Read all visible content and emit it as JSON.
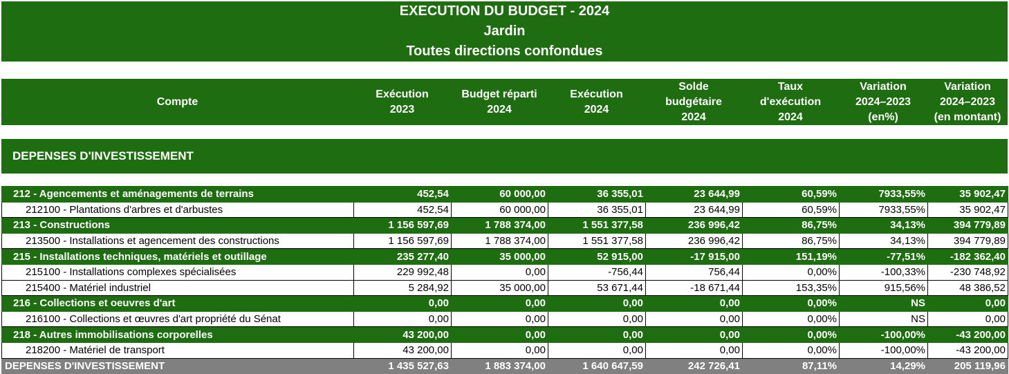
{
  "title": {
    "line1": "EXECUTION DU BUDGET - 2024",
    "line2": "Jardin",
    "line3": "Toutes directions confondues"
  },
  "headers": [
    {
      "l1": "Compte",
      "l2": "",
      "l3": ""
    },
    {
      "l1": "Exécution",
      "l2": "2023",
      "l3": ""
    },
    {
      "l1": "Budget réparti",
      "l2": "2024",
      "l3": ""
    },
    {
      "l1": "Exécution",
      "l2": "2024",
      "l3": ""
    },
    {
      "l1": "Solde",
      "l2": "budgétaire",
      "l3": "2024"
    },
    {
      "l1": "Taux",
      "l2": "d'exécution",
      "l3": "2024"
    },
    {
      "l1": "Variation",
      "l2": "2024–2023",
      "l3": "(en%)"
    },
    {
      "l1": "Variation",
      "l2": "2024–2023",
      "l3": "(en montant)"
    }
  ],
  "section_title": "DEPENSES D'INVESTISSEMENT",
  "rows": [
    {
      "type": "group",
      "cells": [
        "212 - Agencements et aménagements de terrains",
        "452,54",
        "60 000,00",
        "36 355,01",
        "23 644,99",
        "60,59%",
        "7933,55%",
        "35 902,47"
      ]
    },
    {
      "type": "detail",
      "cells": [
        "212100 - Plantations d'arbres et d'arbustes",
        "452,54",
        "60 000,00",
        "36 355,01",
        "23 644,99",
        "60,59%",
        "7933,55%",
        "35 902,47"
      ]
    },
    {
      "type": "group",
      "cells": [
        "213 - Constructions",
        "1 156 597,69",
        "1 788 374,00",
        "1 551 377,58",
        "236 996,42",
        "86,75%",
        "34,13%",
        "394 779,89"
      ]
    },
    {
      "type": "detail",
      "cells": [
        "213500 - Installations et agencement des constructions",
        "1 156 597,69",
        "1 788 374,00",
        "1 551 377,58",
        "236 996,42",
        "86,75%",
        "34,13%",
        "394 779,89"
      ]
    },
    {
      "type": "group",
      "cells": [
        "215 - Installations techniques, matériels et outillage",
        "235 277,40",
        "35 000,00",
        "52 915,00",
        "-17 915,00",
        "151,19%",
        "-77,51%",
        "-182 362,40"
      ]
    },
    {
      "type": "detail",
      "cells": [
        "215100 - Installations complexes spécialisées",
        "229 992,48",
        "0,00",
        "-756,44",
        "756,44",
        "0,00%",
        "-100,33%",
        "-230 748,92"
      ]
    },
    {
      "type": "detail",
      "cells": [
        "215400 - Matériel industriel",
        "5 284,92",
        "35 000,00",
        "53 671,44",
        "-18 671,44",
        "153,35%",
        "915,56%",
        "48 386,52"
      ]
    },
    {
      "type": "group",
      "cells": [
        "216 - Collections et oeuvres d'art",
        "0,00",
        "0,00",
        "0,00",
        "0,00",
        "0,00%",
        "NS",
        "0,00"
      ]
    },
    {
      "type": "detail",
      "cells": [
        "216100 - Collections et œuvres d'art propriété du Sénat",
        "0,00",
        "0,00",
        "0,00",
        "0,00",
        "0,00%",
        "NS",
        "0,00"
      ]
    },
    {
      "type": "group",
      "cells": [
        "218 - Autres immobilisations corporelles",
        "43 200,00",
        "0,00",
        "0,00",
        "0,00",
        "0,00%",
        "-100,00%",
        "-43 200,00"
      ]
    },
    {
      "type": "detail",
      "cells": [
        "218200 - Matériel de transport",
        "43 200,00",
        "0,00",
        "0,00",
        "0,00",
        "0,00%",
        "-100,00%",
        "-43 200,00"
      ]
    },
    {
      "type": "total",
      "cells": [
        "DEPENSES D'INVESTISSEMENT",
        "1 435 527,63",
        "1 883 374,00",
        "1 640 647,59",
        "242 726,41",
        "87,11%",
        "14,29%",
        "205 119,96"
      ]
    }
  ],
  "colors": {
    "green": "#1e6d10",
    "total_gray": "#808080"
  }
}
